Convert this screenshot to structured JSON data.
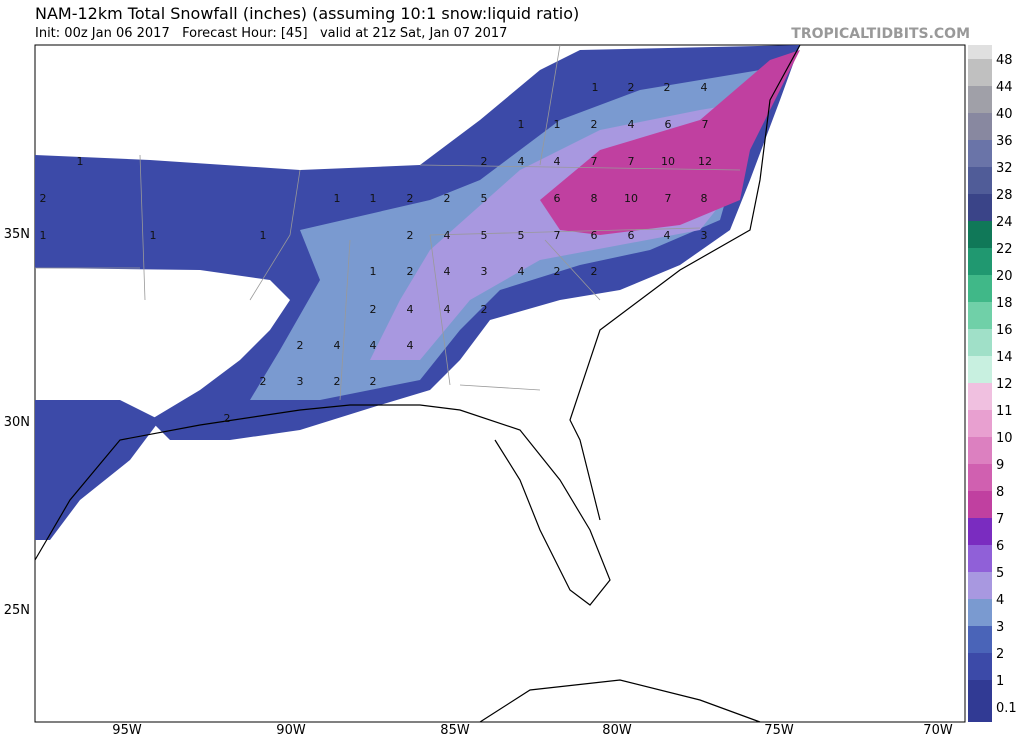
{
  "header": {
    "title": "NAM-12km Total Snowfall (inches) (assuming 10:1 snow:liquid ratio)",
    "subtitle": "Init: 00z Jan 06 2017   Forecast Hour: [45]   valid at 21z Sat, Jan 07 2017",
    "brand": "TROPICALTIDBITS.COM"
  },
  "colorbar": {
    "levels": [
      {
        "label": "0.1",
        "color": "#313a94"
      },
      {
        "label": "1",
        "color": "#3c4aa8"
      },
      {
        "label": "2",
        "color": "#4a64b8"
      },
      {
        "label": "3",
        "color": "#7a9ad0"
      },
      {
        "label": "4",
        "color": "#a898e0"
      },
      {
        "label": "5",
        "color": "#9060d8"
      },
      {
        "label": "6",
        "color": "#7a2cc0"
      },
      {
        "label": "7",
        "color": "#c040a0"
      },
      {
        "label": "8",
        "color": "#d060b0"
      },
      {
        "label": "9",
        "color": "#dc80c0"
      },
      {
        "label": "10",
        "color": "#e8a0d0"
      },
      {
        "label": "11",
        "color": "#f0c0e0"
      },
      {
        "label": "12",
        "color": "#c8f0e0"
      },
      {
        "label": "14",
        "color": "#a0e0c8"
      },
      {
        "label": "16",
        "color": "#70d0a8"
      },
      {
        "label": "18",
        "color": "#40b888"
      },
      {
        "label": "20",
        "color": "#209870"
      },
      {
        "label": "22",
        "color": "#107858"
      },
      {
        "label": "24",
        "color": "#3a4488"
      },
      {
        "label": "28",
        "color": "#505c98"
      },
      {
        "label": "32",
        "color": "#6a74a8"
      },
      {
        "label": "36",
        "color": "#8888a0"
      },
      {
        "label": "40",
        "color": "#a0a0a8"
      },
      {
        "label": "44",
        "color": "#c0c0c0"
      },
      {
        "label": "48",
        "color": "#e0e0e0"
      }
    ]
  },
  "map": {
    "lat_labels": [
      "35N",
      "30N",
      "25N"
    ],
    "lon_labels": [
      "95W",
      "90W",
      "85W",
      "80W",
      "75W",
      "70W"
    ],
    "contour_labels": [
      "1",
      "2",
      "2",
      "4",
      "1",
      "1",
      "2",
      "4",
      "6",
      "7",
      "1",
      "2",
      "4",
      "4",
      "7",
      "7",
      "10",
      "12",
      "2",
      "1",
      "1",
      "2",
      "2",
      "5",
      "6",
      "8",
      "10",
      "7",
      "8",
      "1",
      "1",
      "1",
      "2",
      "4",
      "5",
      "5",
      "7",
      "6",
      "6",
      "4",
      "3",
      "1",
      "2",
      "4",
      "3",
      "4",
      "2",
      "2",
      "2",
      "4",
      "4",
      "2",
      "2",
      "4",
      "4",
      "4",
      "2",
      "3",
      "2",
      "2",
      "2"
    ]
  }
}
